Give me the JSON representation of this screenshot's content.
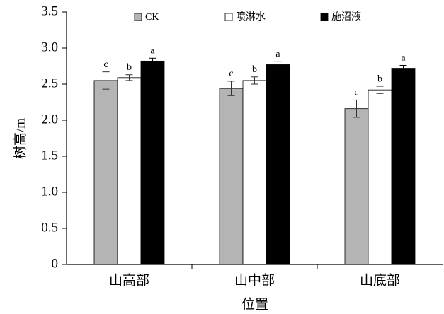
{
  "chart_data": {
    "type": "bar",
    "x_label": "位置",
    "y_label": "树高/m",
    "categories": [
      "山高部",
      "山中部",
      "山底部"
    ],
    "series": [
      {
        "name": "CK",
        "color": "#b4b4b4",
        "values": [
          2.55,
          2.44,
          2.16
        ],
        "errors": [
          0.12,
          0.1,
          0.12
        ],
        "letters": [
          "c",
          "c",
          "c"
        ]
      },
      {
        "name": "喷淋水",
        "color": "#ffffff",
        "values": [
          2.59,
          2.55,
          2.42
        ],
        "errors": [
          0.04,
          0.05,
          0.05
        ],
        "letters": [
          "b",
          "b",
          "b"
        ]
      },
      {
        "name": "施沼液",
        "color": "#000000",
        "values": [
          2.82,
          2.77,
          2.72
        ],
        "errors": [
          0.04,
          0.04,
          0.04
        ],
        "letters": [
          "a",
          "a",
          "a"
        ]
      }
    ],
    "ylim": [
      0,
      3.5
    ],
    "yticks": [
      0,
      0.5,
      {
        "value": 1,
        "label": "1.0"
      },
      1.5,
      {
        "value": 2,
        "label": "2.0"
      },
      2.5,
      {
        "value": 3,
        "label": "3.0"
      },
      3.5
    ],
    "legend": "top"
  }
}
